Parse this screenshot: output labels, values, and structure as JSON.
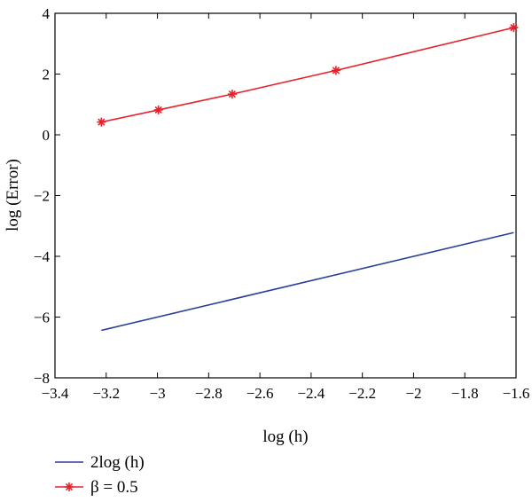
{
  "chart_data": {
    "type": "line",
    "title": "",
    "xlabel": "log (h)",
    "ylabel": "log (Error)",
    "xlim": [
      -3.4,
      -1.6
    ],
    "ylim": [
      -8,
      4
    ],
    "xticks": [
      -3.4,
      -3.2,
      -3.0,
      -2.8,
      -2.6,
      -2.4,
      -2.2,
      -2.0,
      -1.8,
      -1.6
    ],
    "xtick_labels": [
      "−3.4",
      "−3.2",
      "−3",
      "−2.8",
      "−2.6",
      "−2.4",
      "−2.2",
      "−2",
      "−1.8",
      "−1.6"
    ],
    "yticks": [
      -8,
      -6,
      -4,
      -2,
      0,
      2,
      4
    ],
    "ytick_labels": [
      "−8",
      "−6",
      "−4",
      "−2",
      "0",
      "2",
      "4"
    ],
    "grid": false,
    "legend_position": "below",
    "series": [
      {
        "name": "2log (h)",
        "color": "#2a3f9a",
        "marker": "none",
        "x": [
          -3.219,
          -1.609
        ],
        "y": [
          -6.438,
          -3.219
        ]
      },
      {
        "name": "β = 0.5",
        "color": "#e8202a",
        "marker": "asterisk",
        "x": [
          -3.219,
          -2.996,
          -2.708,
          -2.303,
          -1.609
        ],
        "y": [
          0.42,
          0.82,
          1.34,
          2.12,
          3.53
        ]
      }
    ]
  }
}
